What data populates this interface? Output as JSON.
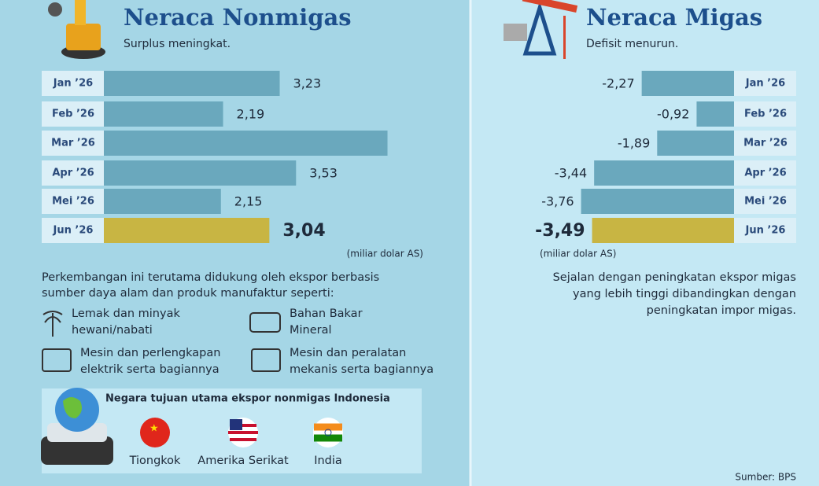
{
  "chart_data": [
    {
      "type": "bar",
      "orientation": "horizontal",
      "title": "Neraca Nonmigas",
      "subtitle": "Surplus meningkat.",
      "categories": [
        "Jan ’26",
        "Feb ’26",
        "Mar ’26",
        "Apr ’26",
        "Mei ’26",
        "Jun ’26"
      ],
      "values": [
        3.23,
        2.19,
        5.21,
        3.53,
        2.15,
        3.04
      ],
      "value_labels": [
        "3,23",
        "2,19",
        null,
        "3,53",
        "2,15",
        "3,04"
      ],
      "colors": [
        "#6aa8bd",
        "#6aa8bd",
        "#6aa8bd",
        "#6aa8bd",
        "#6aa8bd",
        "#c8b543"
      ],
      "xlim": [
        0,
        5.5
      ],
      "unit": "(miliar dolar AS)"
    },
    {
      "type": "bar",
      "orientation": "horizontal",
      "title": "Neraca Migas",
      "subtitle": "Defisit menurun.",
      "categories": [
        "Jan ’26",
        "Feb ’26",
        "Mar ’26",
        "Apr ’26",
        "Mei ’26",
        "Jun ’26"
      ],
      "values": [
        -2.27,
        -0.92,
        -1.89,
        -3.44,
        -3.76,
        -3.49
      ],
      "value_labels": [
        "-2,27",
        "-0,92",
        "-1,89",
        "-3,44",
        "-3,76",
        "-3,49"
      ],
      "colors": [
        "#6aa8bd",
        "#6aa8bd",
        "#6aa8bd",
        "#6aa8bd",
        "#6aa8bd",
        "#c8b543"
      ],
      "xlim": [
        -4.5,
        0
      ],
      "unit": "(miliar dolar AS)"
    }
  ],
  "left_text": {
    "paragraph": [
      "Perkembangan ini terutama didukung oleh ekspor berbasis",
      "sumber daya alam dan produk manufaktur seperti:"
    ],
    "products": [
      [
        "Lemak dan minyak",
        "hewani/nabati"
      ],
      [
        "Bahan Bakar",
        "Mineral"
      ],
      [
        "Mesin dan perlengkapan",
        "elektrik serta bagiannya"
      ],
      [
        "Mesin dan peralatan",
        "mekanis serta bagiannya"
      ]
    ],
    "destinations": {
      "title": "Negara tujuan utama ekspor nonmigas Indonesia",
      "countries": [
        "Tiongkok",
        "Amerika Serikat",
        "India"
      ]
    }
  },
  "right_text": {
    "paragraph": [
      "Sejalan dengan peningkatan ekspor migas",
      "yang lebih tinggi dibandingkan dengan",
      "peningkatan impor migas."
    ]
  },
  "source": "Sumber: BPS"
}
